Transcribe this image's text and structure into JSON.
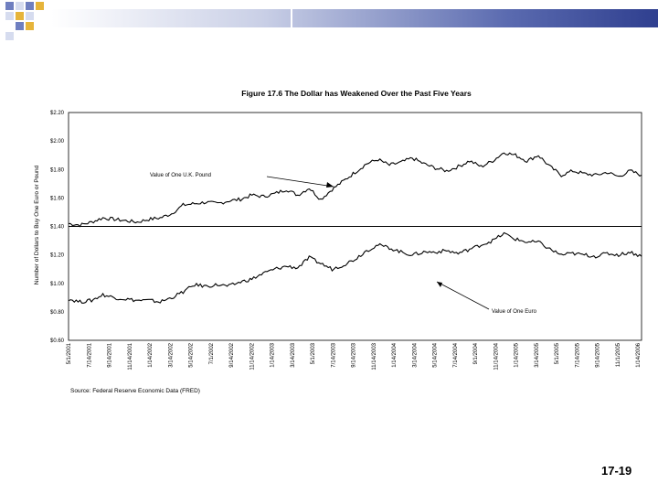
{
  "slide": {
    "page_number": "17-19",
    "source": "Source: Federal Reserve Economic Data (FRED)"
  },
  "colors": {
    "corner_dark": "#6f7fc0",
    "corner_light": "#d6dcef",
    "corner_accent": "#e6b43a",
    "bar_dark": "#2f3f8f"
  },
  "chart_data": {
    "type": "line",
    "title": "Figure 17.6 The Dollar has Weakened Over the Past Five Years",
    "xlabel": "",
    "ylabel": "Number of Dollars to Buy One Euro or Pound",
    "ylim": [
      0.6,
      2.2
    ],
    "y_ticks": [
      "$0.60",
      "$0.80",
      "$1.00",
      "$1.20",
      "$1.40",
      "$1.60",
      "$1.80",
      "$2.00",
      "$2.20"
    ],
    "x_tick_labels": [
      "5/1/2001",
      "7/14/2001",
      "9/14/2001",
      "11/14/2001",
      "1/14/2002",
      "3/14/2002",
      "5/14/2002",
      "7/1/2002",
      "9/14/2002",
      "11/14/2002",
      "1/14/2003",
      "3/14/2003",
      "5/1/2003",
      "7/14/2003",
      "9/14/2003",
      "11/14/2003",
      "1/14/2004",
      "3/14/2004",
      "5/14/2004",
      "7/14/2004",
      "9/1/2004",
      "11/14/2004",
      "1/14/2005",
      "3/14/2005",
      "5/1/2005",
      "7/14/2005",
      "9/14/2005",
      "11/1/2005",
      "1/14/2006"
    ],
    "reference_line": 1.4,
    "series": [
      {
        "name": "Value of One U.K. Pound",
        "values": [
          1.42,
          1.41,
          1.43,
          1.46,
          1.45,
          1.44,
          1.43,
          1.45,
          1.46,
          1.49,
          1.55,
          1.56,
          1.57,
          1.56,
          1.58,
          1.59,
          1.62,
          1.61,
          1.63,
          1.66,
          1.62,
          1.67,
          1.59,
          1.66,
          1.72,
          1.78,
          1.84,
          1.87,
          1.83,
          1.85,
          1.88,
          1.84,
          1.81,
          1.79,
          1.82,
          1.86,
          1.82,
          1.86,
          1.92,
          1.9,
          1.86,
          1.9,
          1.82,
          1.76,
          1.79,
          1.77,
          1.76,
          1.78,
          1.75,
          1.79,
          1.76
        ]
      },
      {
        "name": "Value of One Euro",
        "values": [
          0.89,
          0.87,
          0.88,
          0.92,
          0.9,
          0.89,
          0.88,
          0.88,
          0.87,
          0.9,
          0.94,
          0.99,
          0.98,
          0.99,
          0.98,
          1.01,
          1.03,
          1.07,
          1.1,
          1.12,
          1.11,
          1.18,
          1.14,
          1.1,
          1.13,
          1.17,
          1.23,
          1.27,
          1.25,
          1.22,
          1.2,
          1.22,
          1.22,
          1.23,
          1.21,
          1.24,
          1.27,
          1.3,
          1.35,
          1.31,
          1.29,
          1.29,
          1.24,
          1.2,
          1.21,
          1.2,
          1.19,
          1.21,
          1.2,
          1.22,
          1.19
        ]
      }
    ],
    "annotations": [
      "Value of One U.K. Pound",
      "Value of One Euro"
    ]
  }
}
